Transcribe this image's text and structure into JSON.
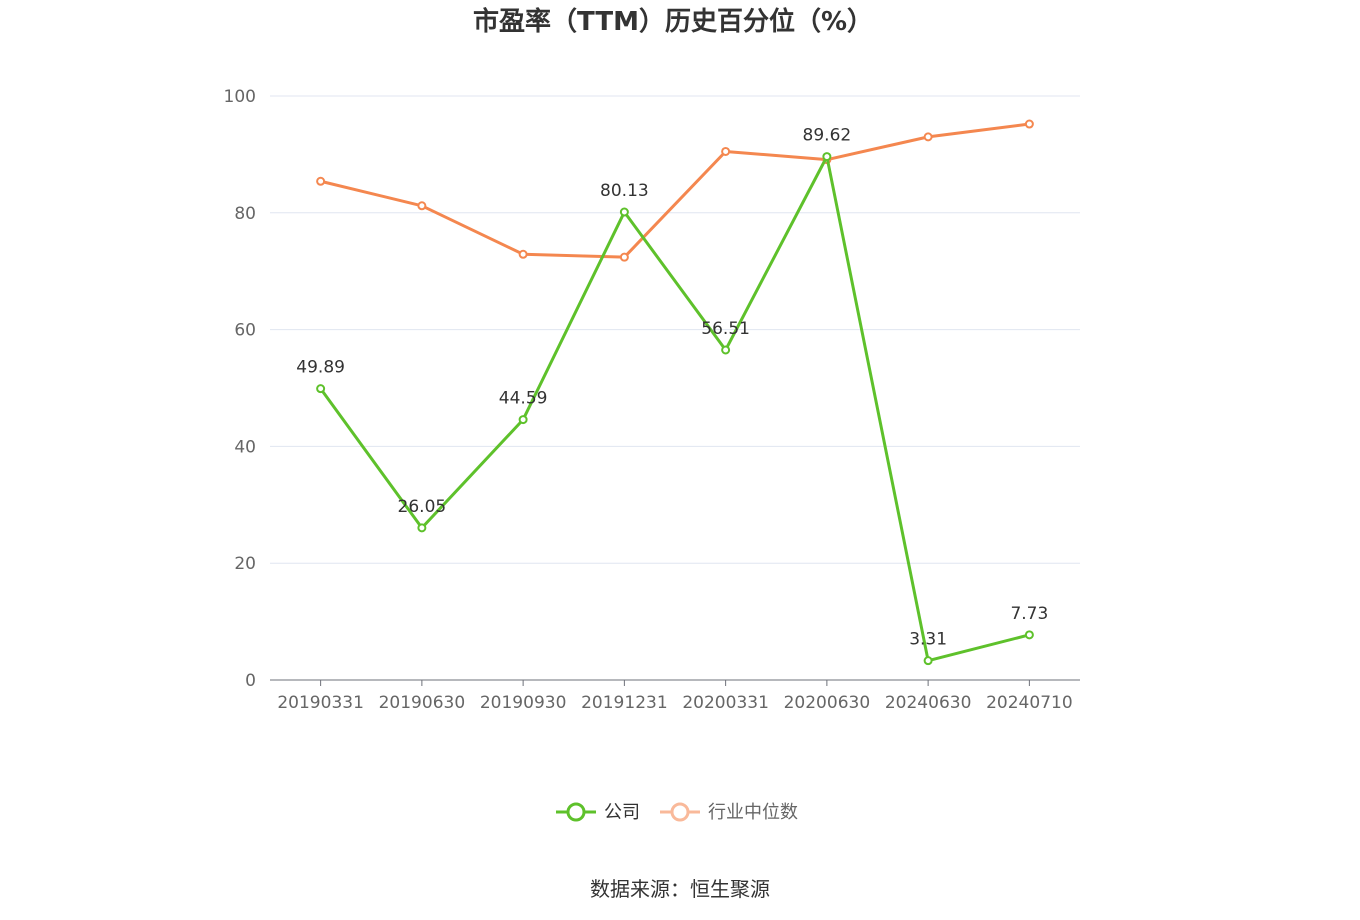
{
  "chart_data": {
    "type": "line",
    "title": "市盈率（TTM）历史百分位（%）",
    "source": "数据来源：恒生聚源",
    "categories": [
      "20190331",
      "20190630",
      "20190930",
      "20191231",
      "20200331",
      "20200630",
      "20240630",
      "20240710"
    ],
    "ylim": [
      0,
      100
    ],
    "yticks": [
      0,
      20,
      40,
      60,
      80,
      100
    ],
    "grid": true,
    "legend_position": "bottom-center",
    "series": [
      {
        "name": "公司",
        "color": "#5ec12b",
        "values": [
          49.89,
          26.05,
          44.59,
          80.13,
          56.51,
          89.62,
          3.31,
          7.73
        ],
        "data_labels": [
          "49.89",
          "26.05",
          "44.59",
          "80.13",
          "56.51",
          "89.62",
          "3.31",
          "7.73"
        ]
      },
      {
        "name": "行业中位数",
        "color": "#f4874f",
        "legend_color": "#f9b99a",
        "values": [
          85.4,
          81.2,
          72.9,
          72.4,
          90.5,
          89.1,
          93.0,
          95.2
        ]
      }
    ]
  }
}
